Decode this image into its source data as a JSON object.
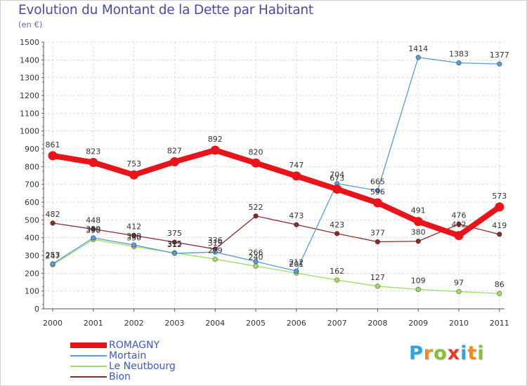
{
  "header": {
    "title": "Evolution du Montant de la Dette par Habitant",
    "unit": "(en €)"
  },
  "logo": {
    "text": "Proxiti",
    "letters": [
      {
        "ch": "P",
        "color": "#2aa7e0"
      },
      {
        "ch": "r",
        "color": "#f08a1c"
      },
      {
        "ch": "o",
        "color": "#86c12f"
      },
      {
        "ch": "x",
        "color": "#e6392c"
      },
      {
        "ch": "i",
        "color": "#2aa7e0"
      },
      {
        "ch": "t",
        "color": "#f08a1c"
      },
      {
        "ch": "i",
        "color": "#86c12f"
      }
    ]
  },
  "chart_data": {
    "type": "line",
    "title": "Evolution du Montant de la Dette par Habitant",
    "ylabel": "(en €)",
    "xlabel": "",
    "x": [
      "2000",
      "2001",
      "2002",
      "2003",
      "2004",
      "2005",
      "2006",
      "2007",
      "2008",
      "2009",
      "2010",
      "2011"
    ],
    "ylim": [
      0,
      1500
    ],
    "yticks": [
      0,
      100,
      200,
      300,
      400,
      500,
      600,
      700,
      800,
      900,
      1000,
      1100,
      1200,
      1300,
      1400,
      1500
    ],
    "grid": true,
    "legend_position": "bottom-left",
    "series": [
      {
        "name": "ROMAGNY",
        "color": "#e8141a",
        "values": [
          861,
          823,
          753,
          827,
          892,
          820,
          747,
          673,
          596,
          491,
          412,
          573
        ],
        "labels": [
          "861",
          "823",
          "753",
          "827",
          "892",
          "820",
          "747",
          "673",
          "596",
          "491",
          "412",
          "573"
        ],
        "bold": true
      },
      {
        "name": "Mortain",
        "color": "#5b9ad6",
        "values": [
          253,
          399,
          359,
          312,
          319,
          266,
          212,
          704,
          665,
          1414,
          1383,
          1377
        ],
        "labels": [
          "253",
          "399",
          "359",
          "312",
          "319",
          "266",
          "212",
          "704",
          "665",
          "1414",
          "1383",
          "1377"
        ]
      },
      {
        "name": "Le Neutbourg",
        "color": "#9edc64",
        "values": [
          247,
          390,
          350,
          315,
          279,
          240,
          201,
          162,
          127,
          109,
          97,
          86
        ],
        "labels": [
          "247",
          "390",
          "350",
          "315",
          "279",
          "240",
          "201",
          "162",
          "127",
          "109",
          "97",
          "86"
        ]
      },
      {
        "name": "Bion",
        "color": "#8a2a2a",
        "values": [
          482,
          448,
          412,
          375,
          336,
          522,
          473,
          423,
          377,
          380,
          476,
          419
        ],
        "labels": [
          "482",
          "448",
          "412",
          "375",
          "336",
          "522",
          "473",
          "423",
          "377",
          "380",
          "476",
          "419"
        ]
      }
    ]
  }
}
